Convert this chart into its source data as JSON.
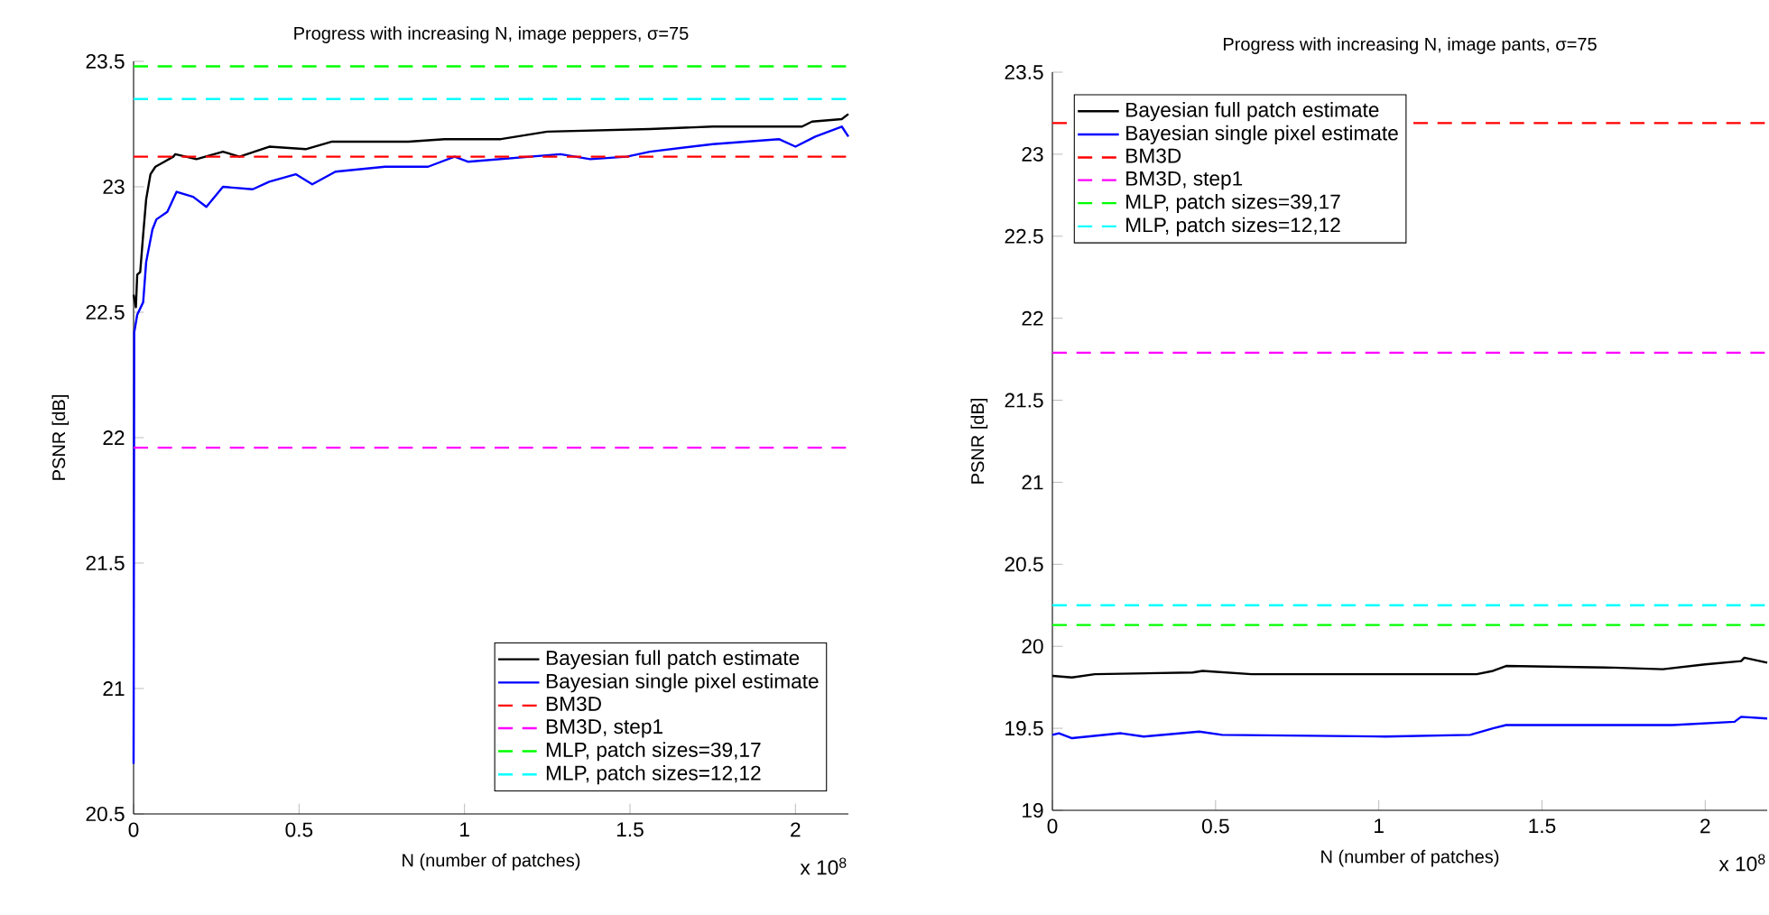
{
  "chart_data": [
    {
      "type": "line",
      "title": "Progress with increasing N, image peppers, σ=75",
      "xlabel": "N (number of patches)",
      "ylabel": "PSNR [dB]",
      "xlim": [
        0,
        2.16
      ],
      "ylim": [
        20.5,
        23.5
      ],
      "xticks": [
        0,
        0.5,
        1,
        1.5,
        2
      ],
      "yticks": [
        20.5,
        21,
        21.5,
        22,
        22.5,
        23,
        23.5
      ],
      "legend": "bottom right",
      "marker": "none",
      "annotations": [
        "x 10$^{8}$"
      ],
      "series": [
        {
          "name": "Bayesian full patch estimate",
          "color": "#000000",
          "line_style": "solid",
          "x": [
            0,
            0.007,
            0.011,
            0.02,
            0.029,
            0.038,
            0.051,
            0.066,
            0.093,
            0.12,
            0.126,
            0.19,
            0.27,
            0.32,
            0.41,
            0.52,
            0.6,
            0.83,
            0.94,
            1.11,
            1.25,
            1.56,
            1.75,
            2.02,
            2.05,
            2.14,
            2.16
          ],
          "values": [
            22.57,
            22.52,
            22.65,
            22.66,
            22.81,
            22.95,
            23.05,
            23.08,
            23.1,
            23.12,
            23.13,
            23.11,
            23.14,
            23.12,
            23.16,
            23.15,
            23.18,
            23.18,
            23.19,
            23.19,
            23.22,
            23.23,
            23.24,
            23.24,
            23.26,
            23.27,
            23.29
          ]
        },
        {
          "name": "Bayesian single pixel estimate",
          "color": "#0000ff",
          "line_style": "solid",
          "x": [
            0,
            0.002,
            0.011,
            0.029,
            0.038,
            0.057,
            0.069,
            0.102,
            0.13,
            0.18,
            0.22,
            0.27,
            0.36,
            0.41,
            0.49,
            0.54,
            0.61,
            0.76,
            0.89,
            0.97,
            1.01,
            1.29,
            1.38,
            1.49,
            1.56,
            1.75,
            1.95,
            2.0,
            2.06,
            2.14,
            2.16
          ],
          "values": [
            20.7,
            22.42,
            22.49,
            22.54,
            22.7,
            22.83,
            22.87,
            22.9,
            22.98,
            22.96,
            22.92,
            23.0,
            22.99,
            23.02,
            23.05,
            23.01,
            23.06,
            23.08,
            23.08,
            23.12,
            23.1,
            23.13,
            23.11,
            23.12,
            23.14,
            23.17,
            23.19,
            23.16,
            23.2,
            23.24,
            23.2
          ]
        },
        {
          "name": "BM3D",
          "color": "#ff0000",
          "line_style": "dashed",
          "x": [
            0,
            2.16
          ],
          "values": [
            23.12,
            23.12
          ]
        },
        {
          "name": "BM3D, step1",
          "color": "#ff00ff",
          "line_style": "dashed",
          "x": [
            0,
            2.16
          ],
          "values": [
            21.96,
            21.96
          ]
        },
        {
          "name": "MLP, patch sizes=39,17",
          "color": "#00ff00",
          "line_style": "dashed",
          "x": [
            0,
            2.16
          ],
          "values": [
            23.48,
            23.48
          ]
        },
        {
          "name": "MLP, patch sizes=12,12",
          "color": "#00ffff",
          "line_style": "dashed",
          "x": [
            0,
            2.16
          ],
          "values": [
            23.35,
            23.35
          ]
        }
      ]
    },
    {
      "type": "line",
      "title": "Progress with increasing N, image pants, σ=75",
      "xlabel": "N (number of patches)",
      "ylabel": "PSNR [dB]",
      "xlim": [
        0,
        2.19
      ],
      "ylim": [
        19,
        23.5
      ],
      "xticks": [
        0,
        0.5,
        1,
        1.5,
        2
      ],
      "yticks": [
        19,
        19.5,
        20,
        20.5,
        21,
        21.5,
        22,
        22.5,
        23,
        23.5
      ],
      "legend": "top left",
      "marker": "none",
      "annotations": [
        "x 10$^{8}$"
      ],
      "series": [
        {
          "name": "Bayesian full patch estimate",
          "color": "#000000",
          "line_style": "solid",
          "x": [
            0,
            0.06,
            0.13,
            0.43,
            0.46,
            0.61,
            1.3,
            1.35,
            1.39,
            1.72,
            1.87,
            2.0,
            2.11,
            2.12,
            2.19
          ],
          "values": [
            19.82,
            19.81,
            19.83,
            19.84,
            19.85,
            19.83,
            19.83,
            19.85,
            19.88,
            19.87,
            19.86,
            19.89,
            19.91,
            19.93,
            19.9
          ]
        },
        {
          "name": "Bayesian single pixel estimate",
          "color": "#0000ff",
          "line_style": "solid",
          "x": [
            0,
            0.02,
            0.06,
            0.21,
            0.28,
            0.45,
            0.52,
            1.02,
            1.28,
            1.35,
            1.39,
            1.9,
            2.09,
            2.11,
            2.19
          ],
          "values": [
            19.46,
            19.47,
            19.44,
            19.47,
            19.45,
            19.48,
            19.46,
            19.45,
            19.46,
            19.5,
            19.52,
            19.52,
            19.54,
            19.57,
            19.56
          ]
        },
        {
          "name": "BM3D",
          "color": "#ff0000",
          "line_style": "dashed",
          "x": [
            0,
            2.19
          ],
          "values": [
            23.19,
            23.19
          ]
        },
        {
          "name": "BM3D, step1",
          "color": "#ff00ff",
          "line_style": "dashed",
          "x": [
            0,
            2.19
          ],
          "values": [
            21.79,
            21.79
          ]
        },
        {
          "name": "MLP, patch sizes=39,17",
          "color": "#00ff00",
          "line_style": "dashed",
          "x": [
            0,
            2.19
          ],
          "values": [
            20.13,
            20.13
          ]
        },
        {
          "name": "MLP, patch sizes=12,12",
          "color": "#00ffff",
          "line_style": "dashed",
          "x": [
            0,
            2.19
          ],
          "values": [
            20.25,
            20.25
          ]
        }
      ]
    }
  ]
}
